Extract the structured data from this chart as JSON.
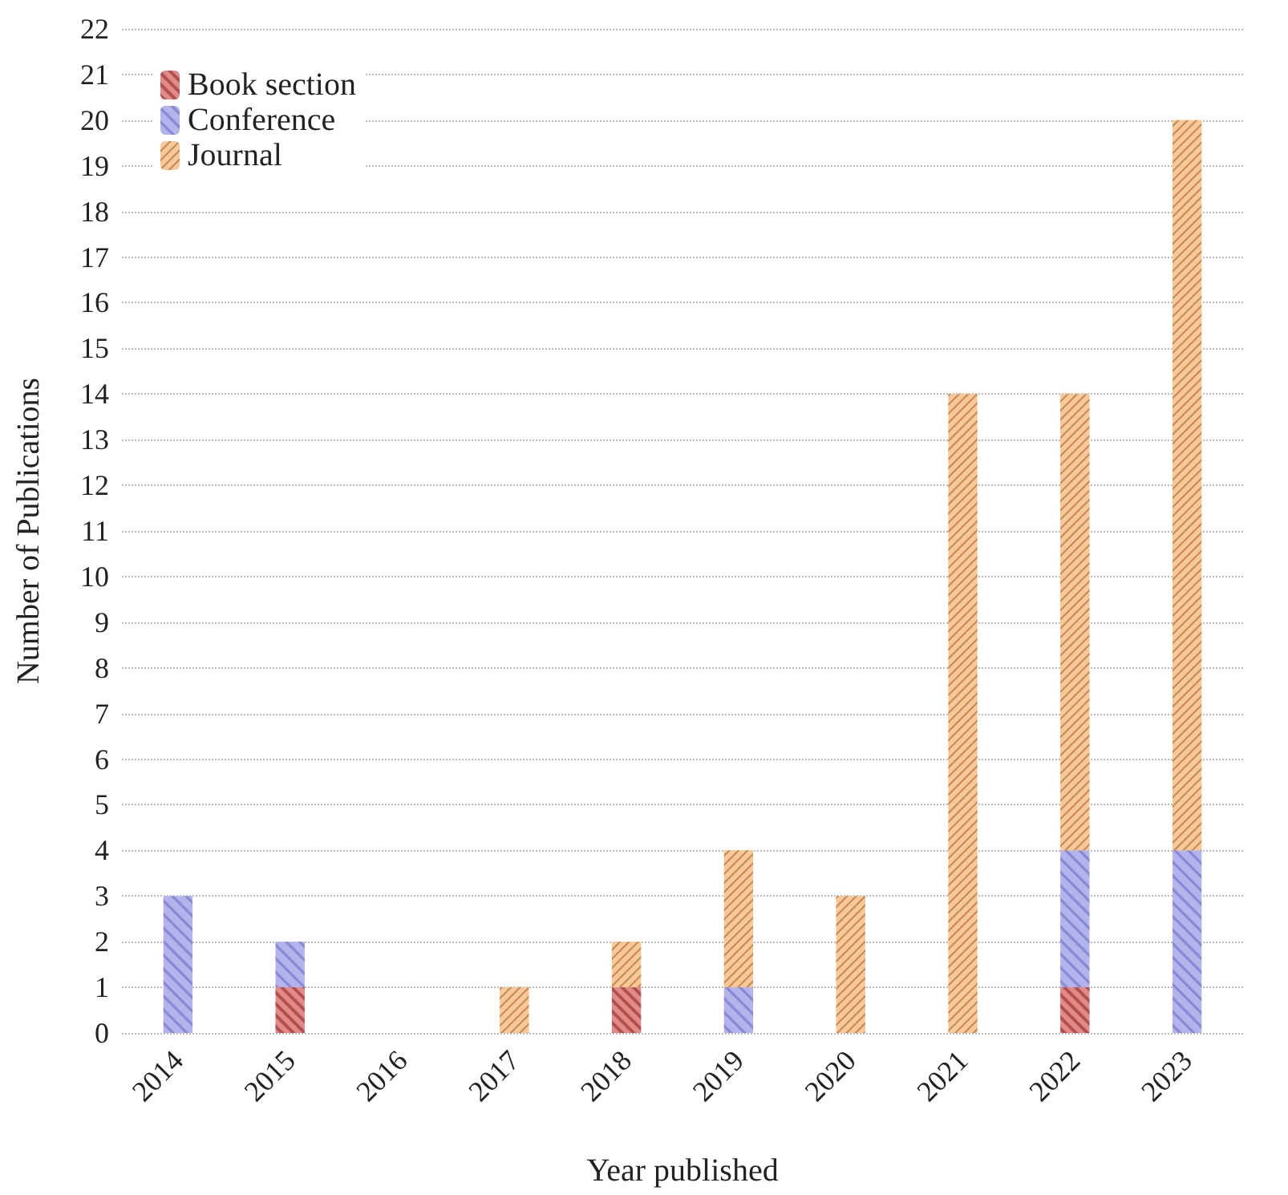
{
  "chart_data": {
    "type": "bar",
    "stacked": true,
    "xlabel": "Year published",
    "ylabel": "Number of Publications",
    "categories": [
      "2014",
      "2015",
      "2016",
      "2017",
      "2018",
      "2019",
      "2020",
      "2021",
      "2022",
      "2023"
    ],
    "series": [
      {
        "name": "Book section",
        "color": "#e08a8a",
        "values": [
          0,
          1,
          0,
          0,
          1,
          0,
          0,
          0,
          1,
          0
        ]
      },
      {
        "name": "Conference",
        "color": "#b4b4ec",
        "values": [
          3,
          1,
          0,
          0,
          0,
          1,
          0,
          0,
          3,
          4
        ]
      },
      {
        "name": "Journal",
        "color": "#f7c898",
        "values": [
          0,
          0,
          0,
          1,
          1,
          3,
          3,
          14,
          10,
          16
        ]
      }
    ],
    "ylim": [
      0,
      22
    ],
    "yticks": [
      0,
      1,
      2,
      3,
      4,
      5,
      6,
      7,
      8,
      9,
      10,
      11,
      12,
      13,
      14,
      15,
      16,
      17,
      18,
      19,
      20,
      21,
      22
    ],
    "grid": "y",
    "legend": "top left"
  }
}
